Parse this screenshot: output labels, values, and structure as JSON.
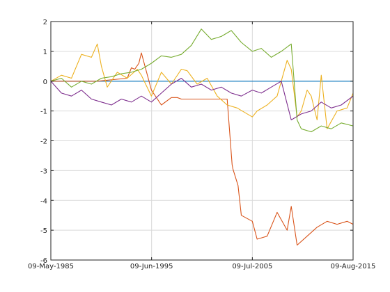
{
  "chart_data": {
    "type": "line",
    "title": "",
    "xlabel": "",
    "ylabel": "",
    "grid": true,
    "legend": "none",
    "x_range": [
      "1985-05-09",
      "2015-08-09"
    ],
    "ylim": [
      -6,
      2
    ],
    "x_ticks": [
      {
        "date": "1985-05-09",
        "label": "09-May-1985"
      },
      {
        "date": "1995-06-09",
        "label": "09-Jun-1995"
      },
      {
        "date": "2005-07-09",
        "label": "09-Jul-2005"
      },
      {
        "date": "2015-08-09",
        "label": "09-Aug-2015"
      }
    ],
    "y_ticks": [
      {
        "value": 2,
        "label": "2"
      },
      {
        "value": 1,
        "label": "1"
      },
      {
        "value": 0,
        "label": "0"
      },
      {
        "value": -1,
        "label": "-1"
      },
      {
        "value": -2,
        "label": "-2"
      },
      {
        "value": -3,
        "label": "-3"
      },
      {
        "value": -4,
        "label": "-4"
      },
      {
        "value": -5,
        "label": "-5"
      },
      {
        "value": -6,
        "label": "-6"
      }
    ],
    "series": [
      {
        "color": "#0072bd",
        "x": [
          "1985-05-09",
          "2015-08-09"
        ],
        "y": [
          0,
          0
        ]
      },
      {
        "color": "#d95319",
        "x": [
          "1985-05-09",
          "1990-01-01",
          "1993-01-01",
          "1993-06-01",
          "1993-10-01",
          "1994-03-01",
          "1994-06-01",
          "1995-06-01",
          "1996-06-01",
          "1997-06-01",
          "1998-01-01",
          "1998-06-01",
          "2003-01-01",
          "2003-07-01",
          "2003-08-01",
          "2004-02-01",
          "2004-06-01",
          "2005-07-09",
          "2006-01-01",
          "2007-01-01",
          "2008-01-01",
          "2009-01-01",
          "2009-06-01",
          "2010-01-01",
          "2011-01-01",
          "2012-01-01",
          "2013-01-01",
          "2014-01-01",
          "2015-01-01",
          "2015-08-09"
        ],
        "y": [
          0,
          0,
          0.1,
          0.45,
          0.4,
          0.6,
          0.95,
          -0.3,
          -0.8,
          -0.55,
          -0.55,
          -0.6,
          -0.6,
          -2.8,
          -2.95,
          -3.5,
          -4.5,
          -4.7,
          -5.3,
          -5.2,
          -4.4,
          -5.0,
          -4.2,
          -5.5,
          -5.2,
          -4.9,
          -4.7,
          -4.8,
          -4.7,
          -4.8
        ]
      },
      {
        "color": "#edb120",
        "x": [
          "1985-05-09",
          "1986-06-01",
          "1987-06-01",
          "1988-06-01",
          "1989-06-01",
          "1990-01-01",
          "1990-06-01",
          "1991-01-01",
          "1992-01-01",
          "1993-01-01",
          "1994-01-01",
          "1994-06-01",
          "1995-06-01",
          "1996-06-01",
          "1997-06-01",
          "1998-06-01",
          "1999-01-01",
          "2000-01-01",
          "2001-01-01",
          "2002-01-01",
          "2003-01-01",
          "2004-01-01",
          "2005-07-09",
          "2006-01-01",
          "2007-01-01",
          "2008-01-01",
          "2009-01-01",
          "2009-06-01",
          "2010-01-01",
          "2010-06-01",
          "2011-01-01",
          "2011-06-01",
          "2012-01-01",
          "2012-06-01",
          "2013-01-01",
          "2014-01-01",
          "2015-01-01",
          "2015-08-09"
        ],
        "y": [
          0,
          0.2,
          0.1,
          0.9,
          0.8,
          1.25,
          0.5,
          -0.2,
          0.3,
          0.1,
          0.4,
          0.2,
          -0.5,
          0.3,
          -0.1,
          0.4,
          0.35,
          -0.1,
          0.1,
          -0.5,
          -0.8,
          -0.9,
          -1.2,
          -1.0,
          -0.8,
          -0.5,
          0.7,
          0.4,
          -1.2,
          -1.0,
          -0.3,
          -0.5,
          -1.3,
          0.2,
          -1.6,
          -1.0,
          -0.9,
          -0.4
        ]
      },
      {
        "color": "#7e2f8e",
        "x": [
          "1985-05-09",
          "1986-06-01",
          "1987-06-01",
          "1988-06-01",
          "1989-06-01",
          "1990-06-01",
          "1991-06-01",
          "1992-06-01",
          "1993-06-01",
          "1994-06-01",
          "1995-06-01",
          "1996-06-01",
          "1997-06-01",
          "1998-06-01",
          "1999-06-01",
          "2000-06-01",
          "2001-06-01",
          "2002-06-01",
          "2003-06-01",
          "2004-06-01",
          "2005-07-09",
          "2006-06-01",
          "2007-06-01",
          "2008-06-01",
          "2009-06-01",
          "2010-06-01",
          "2011-06-01",
          "2012-06-01",
          "2013-06-01",
          "2014-06-01",
          "2015-08-09"
        ],
        "y": [
          0,
          -0.4,
          -0.5,
          -0.3,
          -0.6,
          -0.7,
          -0.8,
          -0.6,
          -0.7,
          -0.5,
          -0.7,
          -0.4,
          -0.1,
          0.1,
          -0.2,
          -0.1,
          -0.3,
          -0.2,
          -0.4,
          -0.5,
          -0.3,
          -0.4,
          -0.2,
          0.0,
          -1.3,
          -1.1,
          -1.0,
          -0.7,
          -0.9,
          -0.8,
          -0.5
        ]
      },
      {
        "color": "#77ac30",
        "x": [
          "1985-05-09",
          "1986-06-01",
          "1987-06-01",
          "1988-06-01",
          "1989-06-01",
          "1990-06-01",
          "1991-06-01",
          "1992-06-01",
          "1993-06-01",
          "1994-06-01",
          "1995-06-01",
          "1996-06-01",
          "1997-06-01",
          "1998-06-01",
          "1999-06-01",
          "2000-06-01",
          "2001-06-01",
          "2002-06-01",
          "2003-06-01",
          "2004-06-01",
          "2005-07-09",
          "2006-06-01",
          "2007-06-01",
          "2008-06-01",
          "2009-06-01",
          "2010-01-01",
          "2010-06-01",
          "2011-06-01",
          "2012-06-01",
          "2013-06-01",
          "2014-06-01",
          "2015-08-09"
        ],
        "y": [
          0,
          0.1,
          -0.2,
          0.0,
          -0.1,
          0.1,
          0.15,
          0.25,
          0.3,
          0.4,
          0.6,
          0.85,
          0.8,
          0.9,
          1.2,
          1.75,
          1.4,
          1.5,
          1.7,
          1.3,
          1.0,
          1.1,
          0.8,
          1.0,
          1.25,
          -1.3,
          -1.6,
          -1.7,
          -1.5,
          -1.6,
          -1.4,
          -1.5
        ]
      }
    ]
  }
}
